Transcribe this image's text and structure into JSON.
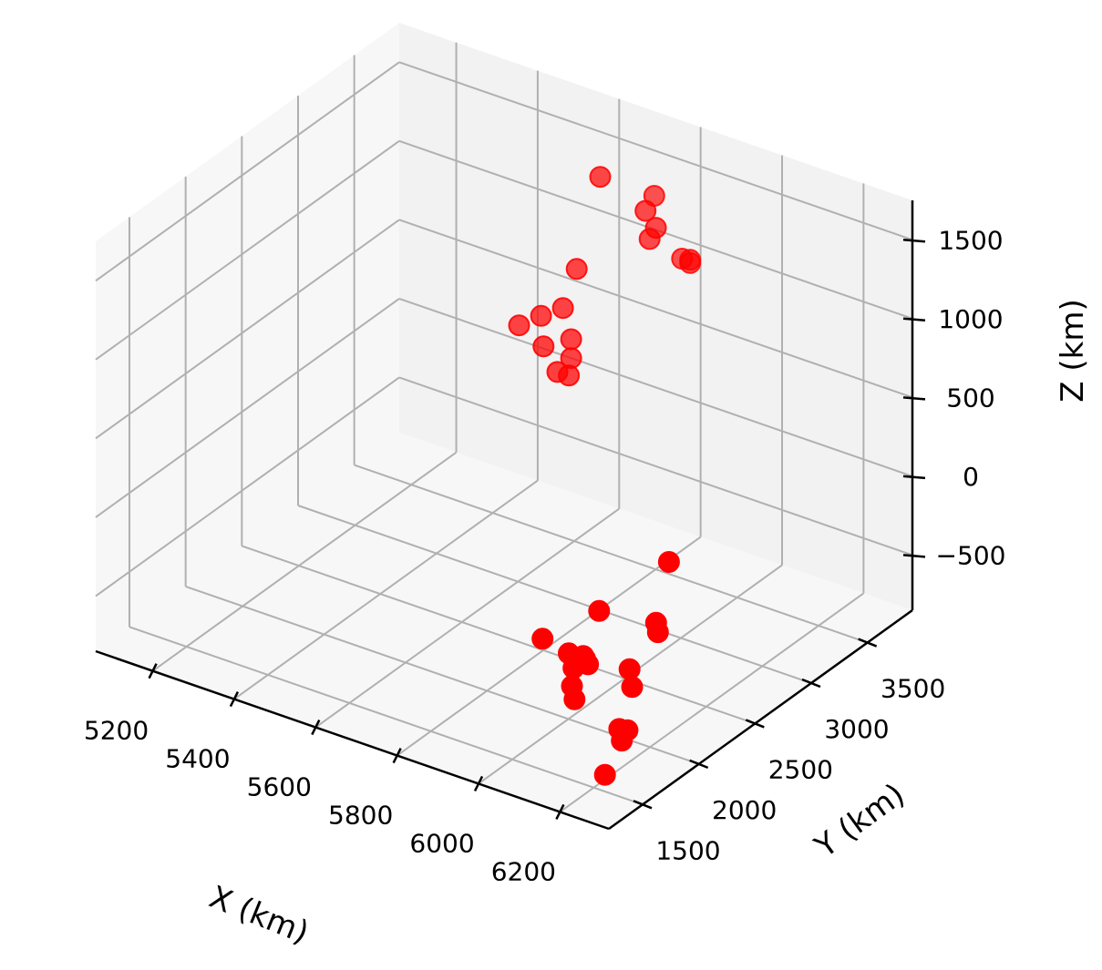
{
  "chart_data": {
    "type": "scatter",
    "projection": "3d",
    "title": "",
    "xlabel": "X (km)",
    "ylabel": "Y (km)",
    "zlabel": "Z (km)",
    "xlim": [
      5060,
      6320
    ],
    "ylim": [
      1200,
      3900
    ],
    "zlim": [
      -850,
      1750
    ],
    "xticks": [
      5200,
      5400,
      5600,
      5800,
      6000,
      6200
    ],
    "yticks": [
      1500,
      2000,
      2500,
      3000,
      3500
    ],
    "zticks": [
      -500,
      0,
      500,
      1000,
      1500
    ],
    "xtick_labels": [
      "5200",
      "5400",
      "5600",
      "5800",
      "6000",
      "6200"
    ],
    "ytick_labels": [
      "1500",
      "2000",
      "2500",
      "3000",
      "3500"
    ],
    "ztick_labels": [
      "−500",
      "0",
      "500",
      "1000",
      "1500"
    ],
    "grid": true,
    "legend": "none",
    "marker_color": "#ff0000",
    "pane_colors": [
      "#f2f2f2",
      "#f7f7f7",
      "#ececec"
    ],
    "grid_color": "#b0b0b0",
    "points": [
      {
        "x": 5700,
        "y": 3850,
        "z": 1250
      },
      {
        "x": 5780,
        "y": 3880,
        "z": 900
      },
      {
        "x": 5780,
        "y": 3880,
        "z": 880
      },
      {
        "x": 5760,
        "y": 3880,
        "z": 890
      },
      {
        "x": 5720,
        "y": 3700,
        "z": 1250
      },
      {
        "x": 5740,
        "y": 3720,
        "z": 1150
      },
      {
        "x": 5730,
        "y": 3700,
        "z": 1080
      },
      {
        "x": 5650,
        "y": 3550,
        "z": 1480
      },
      {
        "x": 5620,
        "y": 3450,
        "z": 920
      },
      {
        "x": 5600,
        "y": 3400,
        "z": 680
      },
      {
        "x": 5560,
        "y": 3350,
        "z": 620
      },
      {
        "x": 5620,
        "y": 3400,
        "z": 500
      },
      {
        "x": 5620,
        "y": 3400,
        "z": 380
      },
      {
        "x": 5600,
        "y": 3350,
        "z": 300
      },
      {
        "x": 5620,
        "y": 3380,
        "z": 280
      },
      {
        "x": 5580,
        "y": 3300,
        "z": 470
      },
      {
        "x": 5520,
        "y": 3300,
        "z": 550
      },
      {
        "x": 6150,
        "y": 2350,
        "z": 100
      },
      {
        "x": 6020,
        "y": 2200,
        "z": -250
      },
      {
        "x": 6160,
        "y": 2200,
        "z": -200
      },
      {
        "x": 6170,
        "y": 2180,
        "z": -240
      },
      {
        "x": 6050,
        "y": 1950,
        "z": -380
      },
      {
        "x": 6060,
        "y": 1930,
        "z": -380
      },
      {
        "x": 6070,
        "y": 1920,
        "z": -400
      },
      {
        "x": 6020,
        "y": 1930,
        "z": -380
      },
      {
        "x": 5950,
        "y": 1950,
        "z": -360
      },
      {
        "x": 6040,
        "y": 1900,
        "z": -440
      },
      {
        "x": 6150,
        "y": 2000,
        "z": -400
      },
      {
        "x": 6170,
        "y": 1950,
        "z": -470
      },
      {
        "x": 6050,
        "y": 1850,
        "z": -520
      },
      {
        "x": 6070,
        "y": 1800,
        "z": -560
      },
      {
        "x": 6180,
        "y": 1800,
        "z": -650
      },
      {
        "x": 6200,
        "y": 1800,
        "z": -640
      },
      {
        "x": 6200,
        "y": 1750,
        "z": -680
      },
      {
        "x": 6200,
        "y": 1600,
        "z": -820
      }
    ]
  }
}
